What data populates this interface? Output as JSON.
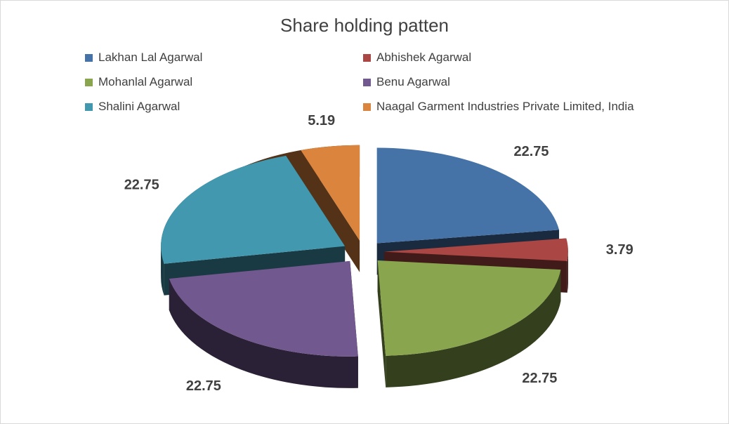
{
  "chart_data": {
    "type": "pie",
    "title": "Share holding patten",
    "legend_position": "top",
    "slices": [
      {
        "label": "Lakhan Lal Agarwal",
        "value": 22.75,
        "value_label": "22.75",
        "color": "#4572A7"
      },
      {
        "label": "Abhishek Agarwal",
        "value": 3.79,
        "value_label": "3.79",
        "color": "#AA4643"
      },
      {
        "label": "Mohanlal Agarwal",
        "value": 22.75,
        "value_label": "22.75",
        "color": "#89A54E"
      },
      {
        "label": "Benu Agarwal",
        "value": 22.75,
        "value_label": "22.75",
        "color": "#71588F"
      },
      {
        "label": "Shalini Agarwal",
        "value": 22.75,
        "value_label": "22.75",
        "color": "#4198AF"
      },
      {
        "label": "Naagal Garment Industries Private Limited, India",
        "value": 5.19,
        "value_label": "5.19",
        "color": "#DB843D"
      }
    ]
  }
}
